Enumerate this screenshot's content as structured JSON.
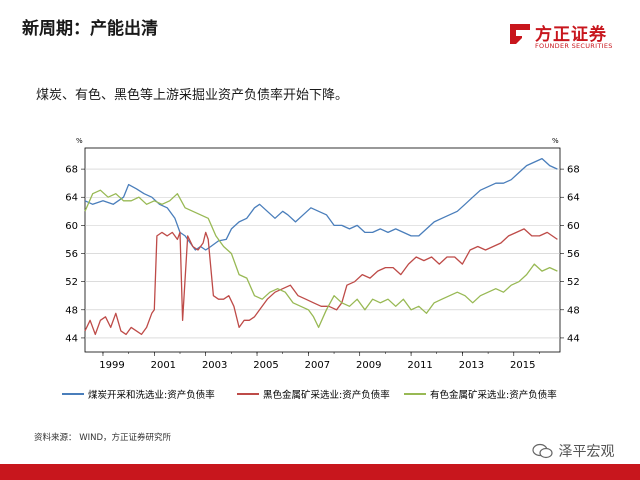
{
  "header": {
    "title": "新周期：产能出清"
  },
  "logo": {
    "name_cn": "方正证券",
    "name_en": "FOUNDER SECURITIES",
    "icon": "founder-logo-icon",
    "color": "#c8161d"
  },
  "subtitle": "煤炭、有色、黑色等上游采掘业资产负债率开始下降。",
  "footer": {
    "source": "资料来源：  WIND，方正证券研究所",
    "watermark": "泽平宏观",
    "bar_color": "#c8161d"
  },
  "chart_data": {
    "type": "line",
    "title": "",
    "ylabel_left": "%",
    "ylabel_right": "%",
    "ylim": [
      42,
      71
    ],
    "y_ticks": [
      44,
      48,
      52,
      56,
      60,
      64,
      68
    ],
    "y_tick_labels": [
      "44",
      "48",
      "52",
      "56",
      "60",
      "64",
      "68"
    ],
    "xlim": [
      1998.3,
      2016.8
    ],
    "x_tick_labels": [
      "1999",
      "2001",
      "2003",
      "2005",
      "2007",
      "2009",
      "2011",
      "2013",
      "2015"
    ],
    "grid": true,
    "legend_position": "bottom",
    "series": [
      {
        "name": "煤炭开采和洗选业:资产负债率",
        "color": "#4a7ebb",
        "x": [
          1998.3,
          1998.6,
          1999.0,
          1999.4,
          1999.8,
          2000.0,
          2000.3,
          2000.6,
          2000.9,
          2001.2,
          2001.5,
          2001.8,
          2002.0,
          2002.2,
          2002.4,
          2002.6,
          2002.8,
          2003.0,
          2003.2,
          2003.5,
          2003.8,
          2004.0,
          2004.3,
          2004.6,
          2004.9,
          2005.1,
          2005.4,
          2005.7,
          2006.0,
          2006.2,
          2006.5,
          2006.8,
          2007.1,
          2007.4,
          2007.7,
          2008.0,
          2008.3,
          2008.6,
          2008.9,
          2009.2,
          2009.5,
          2009.8,
          2010.1,
          2010.4,
          2010.7,
          2011.0,
          2011.3,
          2011.6,
          2011.9,
          2012.2,
          2012.5,
          2012.8,
          2013.1,
          2013.4,
          2013.7,
          2014.0,
          2014.3,
          2014.6,
          2014.9,
          2015.2,
          2015.5,
          2015.8,
          2016.1,
          2016.4,
          2016.7
        ],
        "values": [
          63.5,
          63.0,
          63.5,
          63.0,
          64.0,
          65.8,
          65.2,
          64.5,
          64.0,
          63.0,
          62.5,
          61.0,
          59.0,
          58.5,
          57.5,
          56.5,
          57.0,
          56.5,
          57.0,
          57.8,
          58.0,
          59.5,
          60.5,
          61.0,
          62.5,
          63.0,
          62.0,
          61.0,
          62.0,
          61.5,
          60.5,
          61.5,
          62.5,
          62.0,
          61.5,
          60.0,
          60.0,
          59.5,
          60.0,
          59.0,
          59.0,
          59.5,
          59.0,
          59.5,
          59.0,
          58.5,
          58.5,
          59.5,
          60.5,
          61.0,
          61.5,
          62.0,
          63.0,
          64.0,
          65.0,
          65.5,
          66.0,
          66.0,
          66.5,
          67.5,
          68.5,
          69.0,
          69.5,
          68.5,
          68.0
        ]
      },
      {
        "name": "黑色金属矿采选业:资产负债率",
        "color": "#be4b48",
        "x": [
          1998.3,
          1998.5,
          1998.7,
          1998.9,
          1999.1,
          1999.3,
          1999.5,
          1999.7,
          1999.9,
          2000.1,
          2000.3,
          2000.5,
          2000.7,
          2000.9,
          2001.0,
          2001.1,
          2001.3,
          2001.5,
          2001.7,
          2001.9,
          2002.0,
          2002.1,
          2002.3,
          2002.5,
          2002.7,
          2002.9,
          2003.0,
          2003.1,
          2003.3,
          2003.5,
          2003.7,
          2003.9,
          2004.1,
          2004.3,
          2004.5,
          2004.7,
          2004.9,
          2005.1,
          2005.4,
          2005.7,
          2006.0,
          2006.3,
          2006.6,
          2006.9,
          2007.2,
          2007.5,
          2007.8,
          2008.1,
          2008.3,
          2008.5,
          2008.8,
          2009.1,
          2009.4,
          2009.7,
          2010.0,
          2010.3,
          2010.6,
          2010.9,
          2011.2,
          2011.5,
          2011.8,
          2012.1,
          2012.4,
          2012.7,
          2013.0,
          2013.3,
          2013.6,
          2013.9,
          2014.2,
          2014.5,
          2014.8,
          2015.1,
          2015.4,
          2015.7,
          2016.0,
          2016.3,
          2016.5,
          2016.7
        ],
        "values": [
          45.0,
          46.5,
          44.5,
          46.5,
          47.0,
          45.5,
          47.5,
          45.0,
          44.5,
          45.5,
          45.0,
          44.5,
          45.5,
          47.5,
          48.0,
          58.5,
          59.0,
          58.5,
          59.0,
          58.0,
          59.0,
          46.5,
          58.5,
          57.0,
          56.5,
          57.5,
          59.0,
          58.0,
          50.0,
          49.5,
          49.5,
          50.0,
          48.5,
          45.5,
          46.5,
          46.5,
          47.0,
          48.0,
          49.5,
          50.5,
          51.0,
          51.5,
          50.0,
          49.5,
          49.0,
          48.5,
          48.5,
          48.0,
          49.0,
          51.5,
          52.0,
          53.0,
          52.5,
          53.5,
          54.0,
          54.0,
          53.0,
          54.5,
          55.5,
          55.0,
          55.5,
          54.5,
          55.5,
          55.5,
          54.5,
          56.5,
          57.0,
          56.5,
          57.0,
          57.5,
          58.5,
          59.0,
          59.5,
          58.5,
          58.5,
          59.0,
          58.5,
          58.0
        ]
      },
      {
        "name": "有色金属矿采选业:资产负债率",
        "color": "#98b954",
        "x": [
          1998.3,
          1998.6,
          1998.9,
          1999.2,
          1999.5,
          1999.8,
          2000.1,
          2000.4,
          2000.7,
          2001.0,
          2001.3,
          2001.6,
          2001.9,
          2002.2,
          2002.5,
          2002.8,
          2003.1,
          2003.4,
          2003.7,
          2004.0,
          2004.3,
          2004.6,
          2004.9,
          2005.2,
          2005.5,
          2005.8,
          2006.1,
          2006.4,
          2006.7,
          2007.0,
          2007.2,
          2007.4,
          2007.7,
          2008.0,
          2008.3,
          2008.6,
          2008.9,
          2009.2,
          2009.5,
          2009.8,
          2010.1,
          2010.4,
          2010.7,
          2011.0,
          2011.3,
          2011.6,
          2011.9,
          2012.2,
          2012.5,
          2012.8,
          2013.1,
          2013.4,
          2013.7,
          2014.0,
          2014.3,
          2014.6,
          2014.9,
          2015.2,
          2015.5,
          2015.8,
          2016.1,
          2016.4,
          2016.7
        ],
        "values": [
          62.0,
          64.5,
          65.0,
          64.0,
          64.5,
          63.5,
          63.5,
          64.0,
          63.0,
          63.5,
          63.0,
          63.5,
          64.5,
          62.5,
          62.0,
          61.5,
          61.0,
          58.5,
          57.0,
          56.0,
          53.0,
          52.5,
          50.0,
          49.5,
          50.5,
          51.0,
          50.5,
          49.0,
          48.5,
          48.0,
          47.0,
          45.5,
          48.0,
          50.0,
          49.0,
          48.5,
          49.5,
          48.0,
          49.5,
          49.0,
          49.5,
          48.5,
          49.5,
          48.0,
          48.5,
          47.5,
          49.0,
          49.5,
          50.0,
          50.5,
          50.0,
          49.0,
          50.0,
          50.5,
          51.0,
          50.5,
          51.5,
          52.0,
          53.0,
          54.5,
          53.5,
          54.0,
          53.5
        ]
      }
    ]
  }
}
